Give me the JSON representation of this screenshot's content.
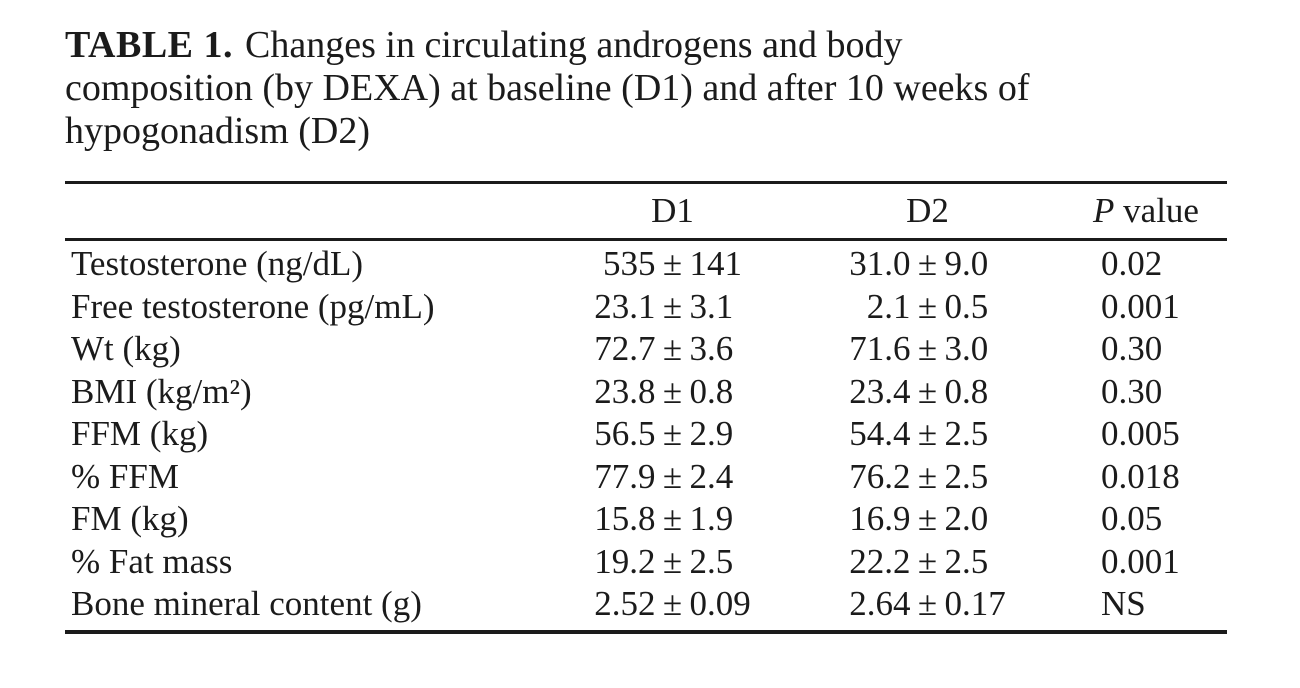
{
  "title": {
    "label": "TABLE 1.",
    "line1_rest": "Changes in circulating androgens and body",
    "line2": "composition (by DEXA) at baseline (D1) and after 10 weeks of",
    "line3": "hypogonadism (D2)"
  },
  "table": {
    "plus_minus": "±",
    "headers": {
      "rowhead": "",
      "d1": "D1",
      "d2": "D2",
      "p_italic": "P",
      "p_rest": " value"
    },
    "rows": [
      {
        "label": "Testosterone (ng/dL)",
        "d1_mean": "535",
        "d1_sd": "141",
        "d2_mean": "31.0",
        "d2_sd": "9.0",
        "p": "0.02"
      },
      {
        "label": "Free testosterone (pg/mL)",
        "d1_mean": "23.1",
        "d1_sd": "3.1",
        "d2_mean": "2.1",
        "d2_sd": "0.5",
        "p": "0.001"
      },
      {
        "label": "Wt (kg)",
        "d1_mean": "72.7",
        "d1_sd": "3.6",
        "d2_mean": "71.6",
        "d2_sd": "3.0",
        "p": "0.30"
      },
      {
        "label": "BMI (kg/m²)",
        "d1_mean": "23.8",
        "d1_sd": "0.8",
        "d2_mean": "23.4",
        "d2_sd": "0.8",
        "p": "0.30"
      },
      {
        "label": "FFM (kg)",
        "d1_mean": "56.5",
        "d1_sd": "2.9",
        "d2_mean": "54.4",
        "d2_sd": "2.5",
        "p": "0.005"
      },
      {
        "label": "% FFM",
        "d1_mean": "77.9",
        "d1_sd": "2.4",
        "d2_mean": "76.2",
        "d2_sd": "2.5",
        "p": "0.018"
      },
      {
        "label": "FM (kg)",
        "d1_mean": "15.8",
        "d1_sd": "1.9",
        "d2_mean": "16.9",
        "d2_sd": "2.0",
        "p": "0.05"
      },
      {
        "label": "% Fat mass",
        "d1_mean": "19.2",
        "d1_sd": "2.5",
        "d2_mean": "22.2",
        "d2_sd": "2.5",
        "p": "0.001"
      },
      {
        "label": "Bone mineral content (g)",
        "d1_mean": "2.52",
        "d1_sd": "0.09",
        "d2_mean": "2.64",
        "d2_sd": "0.17",
        "p": "NS"
      }
    ]
  }
}
